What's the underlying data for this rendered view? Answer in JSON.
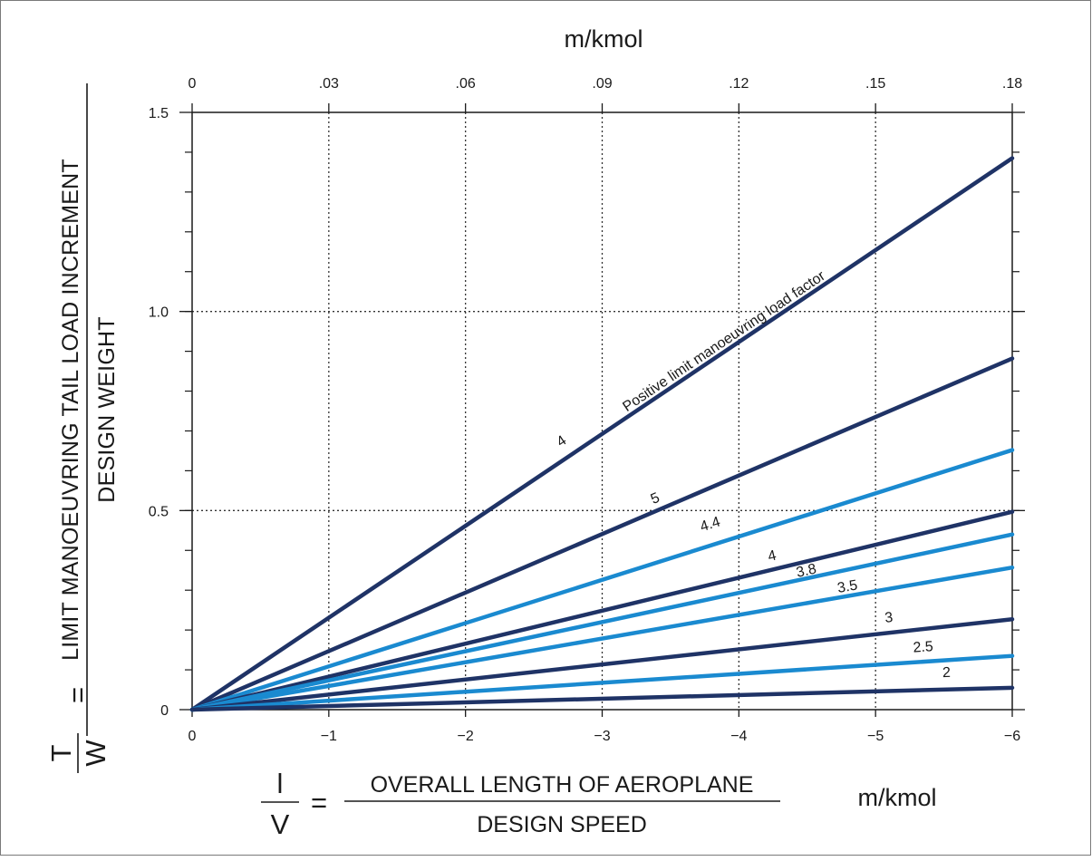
{
  "colors": {
    "dark": "#1f3366",
    "light": "#1a8ad0",
    "grid": "#333333",
    "axis": "#1a1a1a"
  },
  "chart_data": {
    "type": "line",
    "x_bottom": {
      "ticks": [
        0,
        -1,
        -2,
        -3,
        -4,
        -5,
        -6
      ],
      "tick_labels": [
        "0",
        "−1",
        "−2",
        "−3",
        "−4",
        "−5",
        "−6"
      ],
      "range": [
        0,
        -6
      ],
      "unit": "m/kmol",
      "label": {
        "symbol_num": "l",
        "symbol_den": "V",
        "equals": "=",
        "numerator": "OVERALL LENGTH OF AEROPLANE",
        "denominator": "DESIGN SPEED"
      }
    },
    "x_top": {
      "ticks": [
        0,
        0.03,
        0.06,
        0.09,
        0.12,
        0.15,
        0.18
      ],
      "tick_labels": [
        "0",
        ".03",
        ".06",
        ".09",
        ".12",
        ".15",
        ".18"
      ],
      "unit": "m/kmol"
    },
    "y": {
      "range": [
        0,
        1.5
      ],
      "ticks": [
        0,
        0.5,
        1.0,
        1.5
      ],
      "tick_labels": [
        "0",
        "0.5",
        "1.0",
        "1.5"
      ],
      "minor_step": 0.1,
      "label": {
        "symbol_num": "T",
        "symbol_den": "W",
        "equals": "=",
        "numerator": "LIMIT MANOEUVRING TAIL LOAD INCREMENT",
        "denominator": "DESIGN WEIGHT"
      }
    },
    "grid": {
      "vertical_at": [
        -1,
        -2,
        -3,
        -4,
        -5
      ],
      "horizontal_at": [
        0.5,
        1.0
      ],
      "style": "dotted"
    },
    "annotation": "Positive limit manoeuvring load factor",
    "series": [
      {
        "name": "4",
        "color": "dark",
        "x": [
          0,
          -6
        ],
        "y": [
          0,
          1.385
        ],
        "label_at": [
          -2.72,
          0.665
        ]
      },
      {
        "name": "5",
        "color": "dark",
        "x": [
          0,
          -6
        ],
        "y": [
          0,
          0.882
        ],
        "label_at": [
          -3.4,
          0.52
        ]
      },
      {
        "name": "4.4",
        "color": "light",
        "x": [
          0,
          -6
        ],
        "y": [
          0,
          0.652
        ],
        "label_at": [
          -3.8,
          0.455
        ]
      },
      {
        "name": "4",
        "color": "dark",
        "x": [
          0,
          -6
        ],
        "y": [
          0,
          0.497
        ],
        "label_at": [
          -4.25,
          0.375
        ]
      },
      {
        "name": "3.8",
        "color": "light",
        "x": [
          0,
          -6
        ],
        "y": [
          0,
          0.44
        ],
        "label_at": [
          -4.5,
          0.338
        ]
      },
      {
        "name": "3.5",
        "color": "light",
        "x": [
          0,
          -6
        ],
        "y": [
          0,
          0.357
        ],
        "label_at": [
          -4.8,
          0.298
        ]
      },
      {
        "name": "3",
        "color": "dark",
        "x": [
          0,
          -6
        ],
        "y": [
          0,
          0.227
        ],
        "label_at": [
          -5.1,
          0.22
        ]
      },
      {
        "name": "2.5",
        "color": "light",
        "x": [
          0,
          -6
        ],
        "y": [
          0,
          0.135
        ],
        "label_at": [
          -5.35,
          0.146
        ]
      },
      {
        "name": "2",
        "color": "dark",
        "x": [
          0,
          -6
        ],
        "y": [
          0,
          0.055
        ],
        "label_at": [
          -5.52,
          0.082
        ]
      }
    ]
  }
}
